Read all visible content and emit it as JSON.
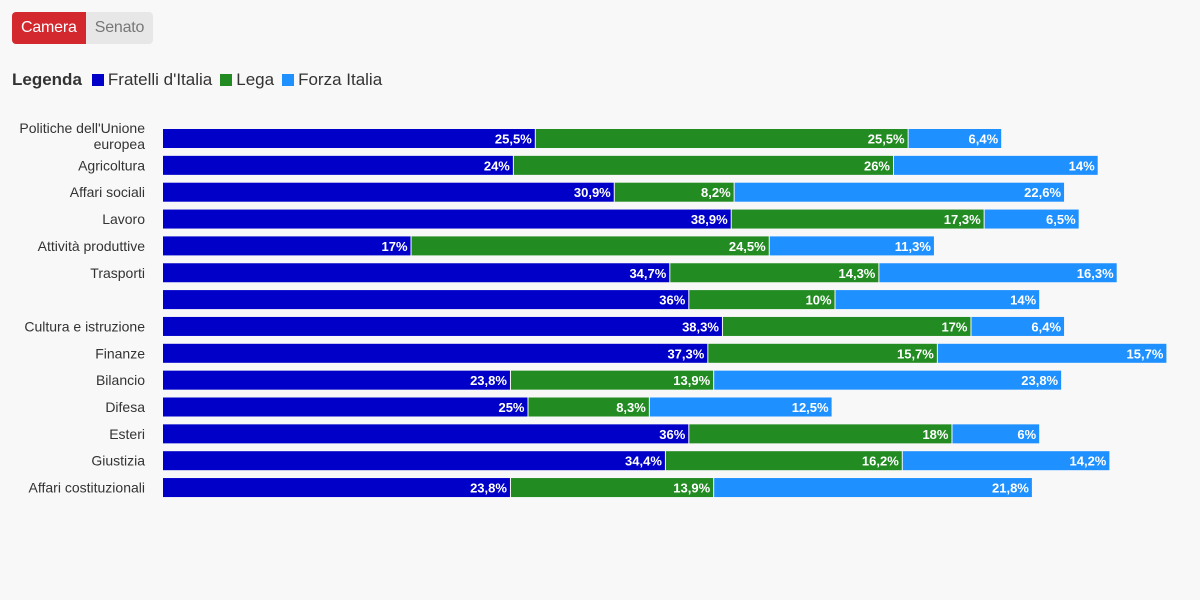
{
  "tabs": [
    {
      "label": "Camera",
      "active": true
    },
    {
      "label": "Senato",
      "active": false
    }
  ],
  "legend": {
    "title": "Legenda",
    "items": [
      {
        "label": "Fratelli d'Italia",
        "color": "#0000c8"
      },
      {
        "label": "Lega",
        "color": "#228b22"
      },
      {
        "label": "Forza Italia",
        "color": "#1e90ff"
      }
    ]
  },
  "chart_data": {
    "type": "bar",
    "orientation": "horizontal",
    "stacked": true,
    "categories": [
      "Politiche dell'Unione europea",
      "Agricoltura",
      "Affari sociali",
      "Lavoro",
      "Attività produttive",
      "Trasporti",
      "",
      "Cultura e istruzione",
      "Finanze",
      "Bilancio",
      "Difesa",
      "Esteri",
      "Giustizia",
      "Affari costituzionali"
    ],
    "series": [
      {
        "name": "Fratelli d'Italia",
        "color": "#0000c8",
        "values": [
          25.5,
          24,
          30.9,
          38.9,
          17,
          34.7,
          36,
          38.3,
          37.3,
          23.8,
          25,
          36,
          34.4,
          23.8
        ],
        "labels": [
          "25,5%",
          "24%",
          "30,9%",
          "38,9%",
          "17%",
          "34,7%",
          "36%",
          "38,3%",
          "37,3%",
          "23,8%",
          "25%",
          "36%",
          "34,4%",
          "23,8%"
        ]
      },
      {
        "name": "Lega",
        "color": "#228b22",
        "values": [
          25.5,
          26,
          8.2,
          17.3,
          24.5,
          14.3,
          10,
          17,
          15.7,
          13.9,
          8.3,
          18,
          16.2,
          13.9
        ],
        "labels": [
          "25,5%",
          "26%",
          "8,2%",
          "17,3%",
          "24,5%",
          "14,3%",
          "10%",
          "17%",
          "15,7%",
          "13,9%",
          "8,3%",
          "18%",
          "16,2%",
          "13,9%"
        ]
      },
      {
        "name": "Forza Italia",
        "color": "#1e90ff",
        "values": [
          6.4,
          14,
          22.6,
          6.5,
          11.3,
          16.3,
          14,
          6.4,
          15.7,
          23.8,
          12.5,
          6,
          14.2,
          21.8
        ],
        "labels": [
          "6,4%",
          "14%",
          "22,6%",
          "6,5%",
          "11,3%",
          "16,3%",
          "14%",
          "6,4%",
          "15,7%",
          "23,8%",
          "12,5%",
          "6%",
          "14,2%",
          "21,8%"
        ]
      }
    ]
  }
}
